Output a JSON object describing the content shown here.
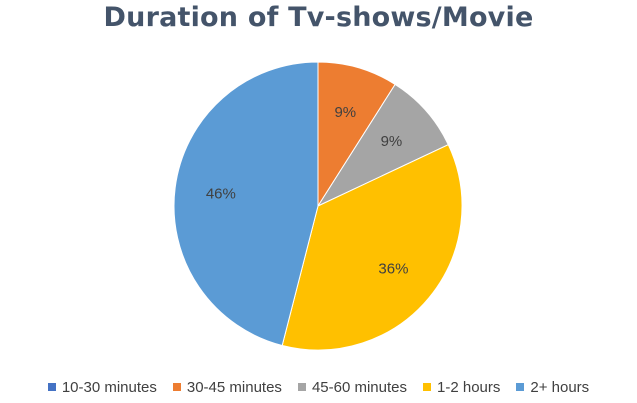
{
  "chart_data": {
    "type": "pie",
    "title": "Duration of Tv-shows/Movie",
    "categories": [
      "10-30 minutes",
      "30-45 minutes",
      "45-60 minutes",
      "1-2 hours",
      "2+ hours"
    ],
    "values": [
      0,
      9,
      9,
      36,
      46
    ],
    "labels": [
      "",
      "9%",
      "9%",
      "36%",
      "46%"
    ],
    "colors": [
      "#4472c4",
      "#ed7d31",
      "#a5a5a5",
      "#ffc000",
      "#5b9bd5"
    ],
    "legend": "bottom"
  }
}
